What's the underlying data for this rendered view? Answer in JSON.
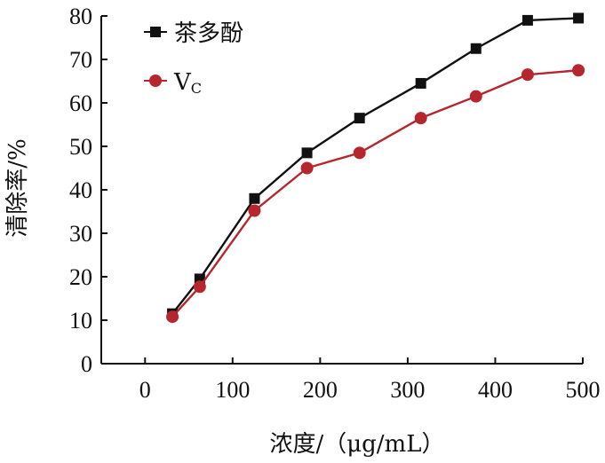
{
  "chart_data": {
    "type": "line",
    "xlabel": "浓度/（μg/mL）",
    "ylabel": "清除率/%",
    "xlim": [
      -50,
      500
    ],
    "ylim": [
      0,
      80
    ],
    "xticks": [
      0,
      100,
      200,
      300,
      400,
      500
    ],
    "yticks": [
      0,
      10,
      20,
      30,
      40,
      50,
      60,
      70,
      80
    ],
    "grid": false,
    "legend_position": "top-left",
    "series": [
      {
        "name": "茶多酚",
        "color": "#111111",
        "marker": "square",
        "x": [
          31.25,
          62.5,
          125,
          185,
          245,
          315,
          378,
          437,
          495
        ],
        "y": [
          11.5,
          19.5,
          38,
          48.5,
          56.5,
          64.5,
          72.5,
          79,
          79.5
        ]
      },
      {
        "name": "VC",
        "name_main": "V",
        "name_sub": "C",
        "color": "#b5272d",
        "marker": "circle",
        "x": [
          31.25,
          62.5,
          125,
          185,
          245,
          315,
          378,
          437,
          495
        ],
        "y": [
          10.8,
          17.7,
          35.2,
          45,
          48.5,
          56.5,
          61.5,
          66.5,
          67.5
        ]
      }
    ]
  }
}
